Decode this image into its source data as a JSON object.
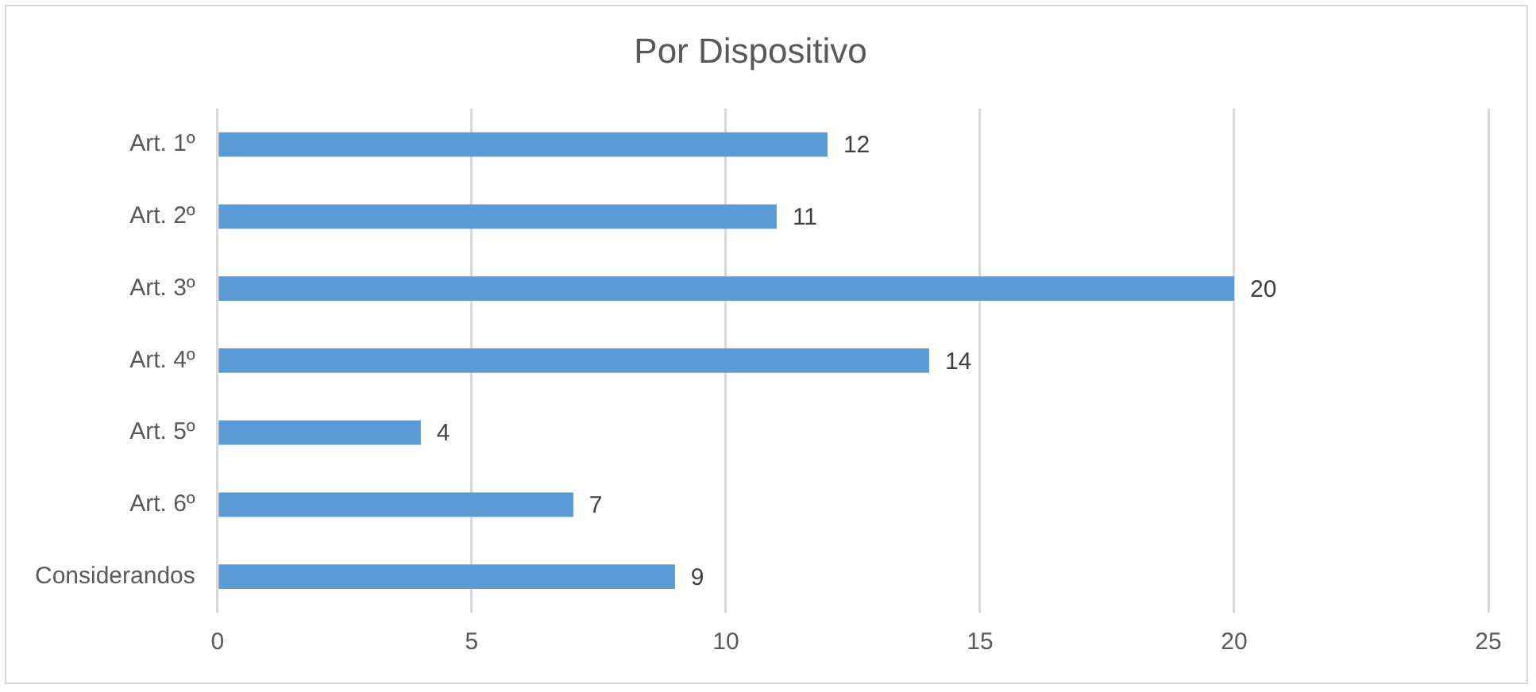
{
  "chart_data": {
    "type": "bar",
    "orientation": "horizontal",
    "title": "Por Dispositivo",
    "categories": [
      "Art. 1º",
      "Art. 2º",
      "Art. 3º",
      "Art. 4º",
      "Art. 5º",
      "Art. 6º",
      "Considerandos"
    ],
    "values": [
      12,
      11,
      20,
      14,
      4,
      7,
      9
    ],
    "color": "#5b9bd5",
    "xlim": [
      0,
      25
    ],
    "xticks": [
      0,
      5,
      10,
      15,
      20,
      25
    ],
    "grid": "x",
    "data_labels": true,
    "legend": false
  }
}
